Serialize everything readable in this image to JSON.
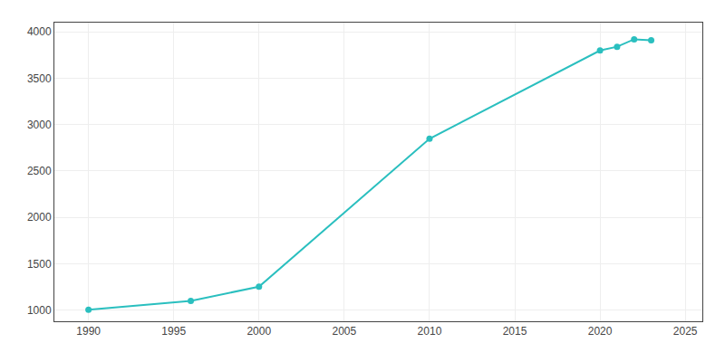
{
  "chart_data": {
    "type": "line",
    "x": [
      1990,
      1996,
      2000,
      2010,
      2020,
      2021,
      2022,
      2023
    ],
    "values": [
      1005,
      1100,
      1253,
      2848,
      3800,
      3840,
      3920,
      3910
    ],
    "color": "#2abfbf",
    "marker": "circle",
    "xlim": [
      1988,
      2026
    ],
    "ylim": [
      880,
      4100
    ],
    "xticks": [
      1990,
      1995,
      2000,
      2005,
      2010,
      2015,
      2020,
      2025
    ],
    "yticks": [
      1000,
      1500,
      2000,
      2500,
      3000,
      3500,
      4000
    ],
    "grid": true
  }
}
